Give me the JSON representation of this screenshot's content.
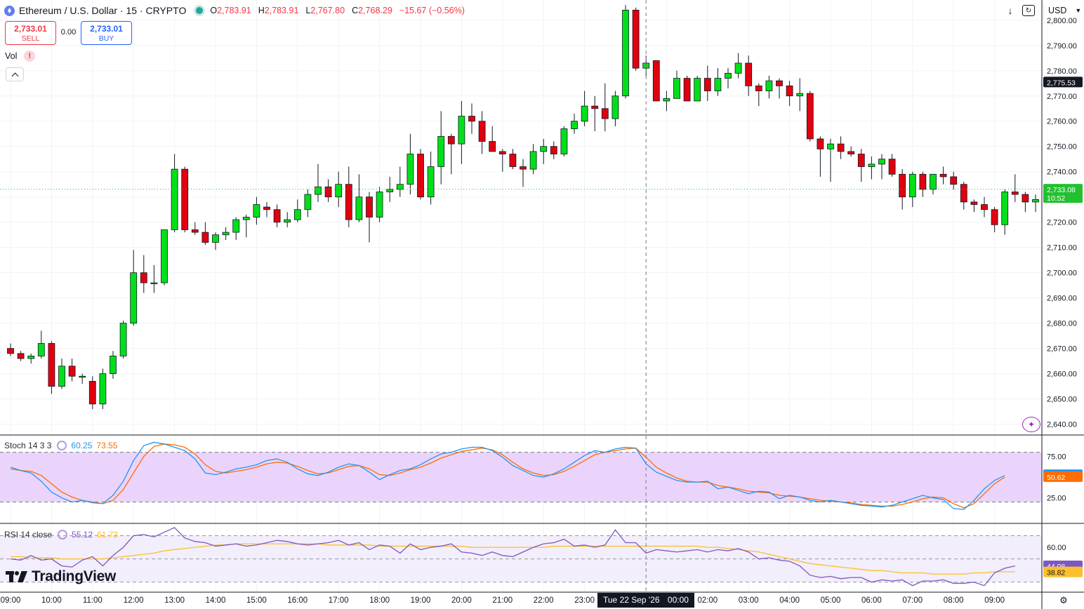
{
  "header": {
    "symbol_title": "Ethereum / U.S. Dollar · 15 · CRYPTO",
    "open_label": "O",
    "open": "2,783.91",
    "high_label": "H",
    "high": "2,783.91",
    "low_label": "L",
    "low": "2,767.80",
    "close_label": "C",
    "close": "2,768.29",
    "change": "−15.67 (−0.56%)",
    "sell_price": "2,733.01",
    "sell_label": "SELL",
    "spread": "0.00",
    "buy_price": "2,733.01",
    "buy_label": "BUY",
    "vol_label": "Vol",
    "warning_glyph": "!",
    "currency": "USD",
    "icon_download": "download-arrow-icon",
    "icon_fullscreen": "fullscreen-icon"
  },
  "indicators": {
    "stoch": {
      "name": "Stoch 14 3 3",
      "k": "60.25",
      "d": "73.55",
      "k_last": "52.89",
      "d_last": "50.62"
    },
    "rsi": {
      "name": "RSI 14 close",
      "rsi": "55.12",
      "ma": "61.73",
      "rsi_last": "44.08",
      "ma_last": "38.82"
    }
  },
  "watermark": "TradingView",
  "crosshair": {
    "date_label": "Tue 22 Sep '26",
    "time_label": "00:00"
  },
  "colors": {
    "up": "#00e01a",
    "down": "#e0000f",
    "stoch_k": "#2196f3",
    "stoch_d": "#ff6d00",
    "rsi": "#7e57c2",
    "rsi_ma": "#fbc02d",
    "band_stoch": "#e8ccfb",
    "band_rsi": "#f2eefb",
    "last_price": "#22c12f"
  },
  "chart_data": {
    "type": "candlestick",
    "symbol": "ETHUSD",
    "interval": "15",
    "y_ticks": [
      2800,
      2790,
      2780,
      2770,
      2760,
      2750,
      2740,
      2730,
      2720,
      2710,
      2700,
      2690,
      2680,
      2670,
      2660,
      2650,
      2640
    ],
    "y_tick_labels": [
      "2,800.00",
      "2,790.00",
      "2,780.00",
      "2,770.00",
      "2,760.00",
      "2,750.00",
      "2,740.00",
      "2,730.00",
      "2,720.00",
      "2,710.00",
      "2,700.00",
      "2,690.00",
      "2,680.00",
      "2,670.00",
      "2,660.00",
      "2,650.00",
      "2,640.00"
    ],
    "ylim": [
      2636,
      2808
    ],
    "x_tick_labels": [
      "09:00",
      "10:00",
      "11:00",
      "12:00",
      "13:00",
      "14:00",
      "15:00",
      "16:00",
      "17:00",
      "18:00",
      "19:00",
      "20:00",
      "21:00",
      "22:00",
      "23:00",
      "00:00",
      "01:00",
      "02:00",
      "03:00",
      "04:00",
      "05:00",
      "06:00",
      "07:00",
      "08:00",
      "09:00"
    ],
    "x_tick_positions": [
      0,
      4,
      8,
      12,
      16,
      20,
      24,
      28,
      32,
      36,
      40,
      44,
      48,
      52,
      56,
      60,
      64,
      68,
      72,
      76,
      80,
      84,
      88,
      92,
      96
    ],
    "first_candle_index": -1,
    "candles": [
      [
        2670,
        2672,
        2667,
        2668
      ],
      [
        2668,
        2669,
        2665,
        2666
      ],
      [
        2666,
        2668,
        2664,
        2667
      ],
      [
        2667,
        2677,
        2666,
        2672
      ],
      [
        2672,
        2673,
        2652,
        2655
      ],
      [
        2655,
        2666,
        2654,
        2663
      ],
      [
        2663,
        2666,
        2657,
        2659
      ],
      [
        2659,
        2660,
        2656,
        2659
      ],
      [
        2657,
        2659,
        2646,
        2648
      ],
      [
        2648,
        2662,
        2646,
        2660
      ],
      [
        2660,
        2669,
        2658,
        2667
      ],
      [
        2667,
        2681,
        2666,
        2680
      ],
      [
        2680,
        2709,
        2679,
        2700
      ],
      [
        2700,
        2707,
        2692,
        2696
      ],
      [
        2696,
        2703,
        2692,
        2696
      ],
      [
        2696,
        2717,
        2695,
        2717
      ],
      [
        2717,
        2747,
        2716,
        2741
      ],
      [
        2741,
        2742,
        2716,
        2717
      ],
      [
        2717,
        2720,
        2715,
        2716
      ],
      [
        2716,
        2720,
        2711,
        2712
      ],
      [
        2712,
        2716,
        2709,
        2715
      ],
      [
        2715,
        2718,
        2713,
        2716
      ],
      [
        2716,
        2722,
        2713,
        2721
      ],
      [
        2721,
        2723,
        2714,
        2722
      ],
      [
        2722,
        2730,
        2719,
        2727
      ],
      [
        2726,
        2728,
        2722,
        2725
      ],
      [
        2725,
        2727,
        2718,
        2720
      ],
      [
        2720,
        2724,
        2718,
        2721
      ],
      [
        2721,
        2729,
        2720,
        2725
      ],
      [
        2725,
        2733,
        2722,
        2731
      ],
      [
        2731,
        2743,
        2728,
        2734
      ],
      [
        2734,
        2737,
        2728,
        2730
      ],
      [
        2730,
        2740,
        2726,
        2735
      ],
      [
        2735,
        2742,
        2718,
        2721
      ],
      [
        2721,
        2739,
        2720,
        2730
      ],
      [
        2730,
        2732,
        2712,
        2722
      ],
      [
        2722,
        2734,
        2720,
        2732
      ],
      [
        2732,
        2738,
        2728,
        2733
      ],
      [
        2733,
        2742,
        2730,
        2735
      ],
      [
        2735,
        2755,
        2731,
        2747
      ],
      [
        2747,
        2749,
        2729,
        2730
      ],
      [
        2730,
        2748,
        2727,
        2742
      ],
      [
        2742,
        2764,
        2735,
        2754
      ],
      [
        2754,
        2755,
        2739,
        2751
      ],
      [
        2751,
        2768,
        2743,
        2762
      ],
      [
        2762,
        2767,
        2755,
        2760
      ],
      [
        2760,
        2764,
        2747,
        2752
      ],
      [
        2752,
        2758,
        2748,
        2748
      ],
      [
        2748,
        2749,
        2740,
        2747
      ],
      [
        2747,
        2749,
        2741,
        2742
      ],
      [
        2742,
        2745,
        2734,
        2741
      ],
      [
        2741,
        2751,
        2739,
        2748
      ],
      [
        2748,
        2753,
        2743,
        2750
      ],
      [
        2750,
        2752,
        2745,
        2747
      ],
      [
        2747,
        2758,
        2746,
        2757
      ],
      [
        2757,
        2763,
        2755,
        2760
      ],
      [
        2760,
        2772,
        2758,
        2766
      ],
      [
        2766,
        2770,
        2756,
        2765
      ],
      [
        2765,
        2775,
        2756,
        2761
      ],
      [
        2761,
        2772,
        2758,
        2770
      ],
      [
        2770,
        2806,
        2769,
        2804
      ],
      [
        2804,
        2805,
        2780,
        2781
      ],
      [
        2781,
        2786,
        2778,
        2783
      ],
      [
        2784,
        2784,
        2768,
        2768
      ],
      [
        2768,
        2772,
        2764,
        2769
      ],
      [
        2769,
        2780,
        2769,
        2777
      ],
      [
        2777,
        2778,
        2768,
        2768
      ],
      [
        2768,
        2778,
        2768,
        2777
      ],
      [
        2777,
        2782,
        2768,
        2772
      ],
      [
        2772,
        2781,
        2770,
        2777
      ],
      [
        2777,
        2781,
        2773,
        2779
      ],
      [
        2779,
        2787,
        2777,
        2783
      ],
      [
        2783,
        2786,
        2770,
        2774
      ],
      [
        2774,
        2775,
        2766,
        2772
      ],
      [
        2772,
        2778,
        2769,
        2776
      ],
      [
        2776,
        2777,
        2769,
        2774
      ],
      [
        2774,
        2776,
        2766,
        2770
      ],
      [
        2770,
        2777,
        2764,
        2771
      ],
      [
        2771,
        2772,
        2752,
        2753
      ],
      [
        2753,
        2754,
        2738,
        2749
      ],
      [
        2749,
        2753,
        2736,
        2751
      ],
      [
        2751,
        2754,
        2745,
        2748
      ],
      [
        2748,
        2750,
        2746,
        2747
      ],
      [
        2747,
        2749,
        2736,
        2742
      ],
      [
        2742,
        2746,
        2737,
        2743
      ],
      [
        2743,
        2747,
        2737,
        2745
      ],
      [
        2745,
        2747,
        2738,
        2739
      ],
      [
        2739,
        2741,
        2725,
        2730
      ],
      [
        2730,
        2740,
        2726,
        2739
      ],
      [
        2739,
        2740,
        2730,
        2733
      ],
      [
        2733,
        2739,
        2731,
        2739
      ],
      [
        2739,
        2742,
        2735,
        2738
      ],
      [
        2738,
        2740,
        2733,
        2735
      ],
      [
        2735,
        2736,
        2725,
        2728
      ],
      [
        2728,
        2729,
        2724,
        2727
      ],
      [
        2727,
        2730,
        2722,
        2725
      ],
      [
        2725,
        2726,
        2716,
        2719
      ],
      [
        2719,
        2733,
        2715,
        2732
      ],
      [
        2732,
        2739,
        2728,
        2731
      ],
      [
        2731,
        2732,
        2724,
        2728
      ],
      [
        2728,
        2731,
        2724,
        2729
      ],
      [
        2729,
        2734,
        2728,
        2733
      ]
    ],
    "last_price": 2733.08,
    "last_price_label": "2,733.08",
    "countdown": "10:52",
    "crosshair_price": 2775.53,
    "crosshair_price_label": "2,775.53",
    "crosshair_index": 62,
    "stoch": {
      "ylim": [
        -5,
        100
      ],
      "levels": [
        80,
        20
      ],
      "tick_labels": [
        "75.00",
        "25.00"
      ],
      "tick_values": [
        75,
        25
      ],
      "k": [
        62,
        58,
        55,
        45,
        32,
        25,
        20,
        22,
        19,
        18,
        28,
        45,
        70,
        88,
        92,
        90,
        86,
        82,
        72,
        55,
        53,
        56,
        60,
        62,
        65,
        70,
        72,
        68,
        60,
        54,
        52,
        56,
        62,
        66,
        64,
        56,
        47,
        53,
        58,
        60,
        65,
        72,
        78,
        80,
        84,
        86,
        86,
        82,
        74,
        64,
        58,
        52,
        50,
        54,
        60,
        68,
        76,
        82,
        80,
        84,
        86,
        85,
        66,
        56,
        51,
        46,
        44,
        44,
        45,
        36,
        38,
        34,
        30,
        33,
        32,
        24,
        28,
        26,
        22,
        20,
        22,
        20,
        18,
        16,
        15,
        14,
        16,
        20,
        24,
        28,
        25,
        23,
        12,
        11,
        22,
        36,
        46,
        52
      ],
      "d": [
        60,
        58,
        57,
        52,
        42,
        32,
        26,
        22,
        20,
        18,
        22,
        35,
        55,
        75,
        87,
        90,
        89,
        86,
        78,
        65,
        57,
        55,
        57,
        59,
        62,
        66,
        68,
        67,
        63,
        58,
        54,
        55,
        59,
        63,
        64,
        60,
        53,
        52,
        55,
        59,
        62,
        67,
        73,
        77,
        81,
        83,
        85,
        83,
        77,
        68,
        60,
        55,
        52,
        53,
        57,
        63,
        70,
        77,
        80,
        82,
        84,
        85,
        74,
        62,
        55,
        49,
        45,
        44,
        44,
        40,
        38,
        36,
        33,
        32,
        31,
        28,
        27,
        26,
        24,
        22,
        21,
        20,
        19,
        17,
        16,
        15,
        15,
        17,
        20,
        24,
        26,
        25,
        18,
        13,
        18,
        30,
        42,
        50
      ]
    },
    "rsi": {
      "ylim": [
        22,
        80
      ],
      "levels": [
        70,
        50,
        30
      ],
      "tick_labels": [
        "60.00"
      ],
      "tick_values": [
        60
      ],
      "rsi": [
        50,
        49,
        53,
        49,
        50,
        44,
        43,
        49,
        52,
        44,
        53,
        60,
        70,
        71,
        69,
        73,
        77,
        68,
        65,
        64,
        61,
        62,
        63,
        61,
        62,
        64,
        66,
        65,
        63,
        62,
        63,
        64,
        66,
        62,
        64,
        58,
        62,
        61,
        55,
        63,
        58,
        60,
        61,
        63,
        56,
        55,
        53,
        56,
        53,
        52,
        56,
        60,
        63,
        64,
        67,
        61,
        62,
        60,
        62,
        75,
        64,
        64,
        55,
        58,
        57,
        56,
        57,
        58,
        56,
        58,
        57,
        59,
        56,
        50,
        51,
        49,
        48,
        44,
        36,
        34,
        35,
        33,
        34,
        34,
        30,
        32,
        31,
        32,
        27,
        31,
        31,
        32,
        29,
        29,
        30,
        27,
        38,
        42,
        44
      ],
      "ma": [
        52,
        52,
        51,
        51,
        51,
        50,
        50,
        50,
        50,
        50,
        51,
        52,
        53,
        54,
        55,
        57,
        58,
        59,
        60,
        61,
        62,
        62,
        63,
        63,
        63,
        63,
        63,
        63,
        63,
        63,
        63,
        62,
        62,
        62,
        62,
        62,
        61,
        61,
        61,
        61,
        61,
        61,
        61,
        61,
        61,
        60,
        60,
        60,
        60,
        60,
        60,
        60,
        60,
        61,
        61,
        61,
        61,
        61,
        61,
        61,
        61,
        61,
        61,
        61,
        61,
        61,
        61,
        61,
        60,
        60,
        59,
        58,
        57,
        56,
        54,
        52,
        50,
        48,
        46,
        45,
        44,
        43,
        42,
        41,
        40,
        40,
        39,
        38,
        38,
        38,
        37,
        37,
        37,
        37,
        38,
        38,
        39,
        39,
        39
      ]
    }
  }
}
